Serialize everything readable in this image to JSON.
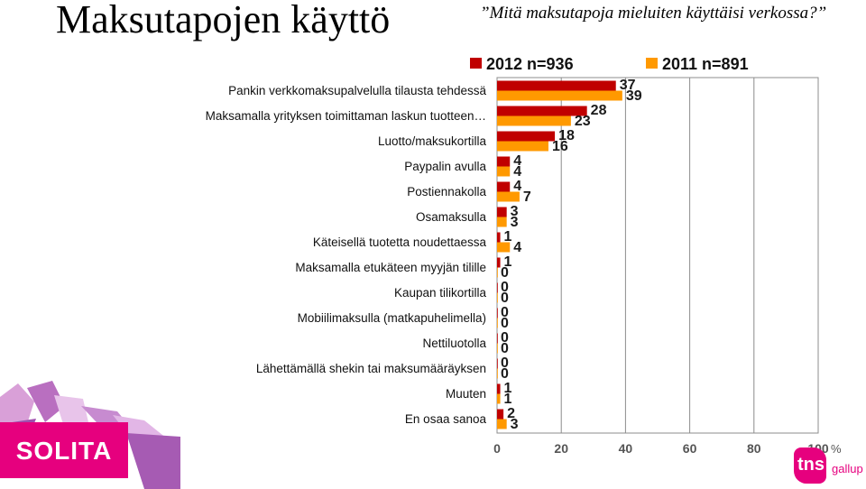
{
  "slide": {
    "title": "Maksutapojen käyttö",
    "subtitle": "”Mitä maksutapoja mieluiten käyttäisi verkossa?”"
  },
  "logos": {
    "solita": "SOLITA",
    "tns_mark": "tns",
    "tns_sub": "gallup"
  },
  "colors": {
    "series_2012": "#c00000",
    "series_2011": "#ff9900",
    "brand_pink": "#e6007e"
  },
  "chart_data": {
    "type": "bar",
    "orientation": "horizontal",
    "categories": [
      "Pankin verkkomaksupalvelulla tilausta tehdessä",
      "Maksamalla yrityksen toimittaman laskun tuotteen…",
      "Luotto/maksukortilla",
      "Paypalin avulla",
      "Postiennakolla",
      "Osamaksulla",
      "Käteisellä tuotetta noudettaessa",
      "Maksamalla etukäteen myyjän tilille",
      "Kaupan tilikortilla",
      "Mobiilimaksulla (matkapuhelimella)",
      "Nettiluotolla",
      "Lähettämällä shekin tai maksumääräyksen",
      "Muuten",
      "En osaa sanoa"
    ],
    "series": [
      {
        "name": "2012 n=936",
        "values": [
          37,
          28,
          18,
          4,
          4,
          3,
          1,
          1,
          0,
          0,
          0,
          0,
          1,
          2
        ]
      },
      {
        "name": "2011 n=891",
        "values": [
          39,
          23,
          16,
          4,
          7,
          3,
          4,
          0,
          0,
          0,
          0,
          0,
          1,
          3
        ]
      }
    ],
    "xlim": [
      0,
      100
    ],
    "xticks": [
      "0",
      "20",
      "40",
      "60",
      "80",
      "100"
    ],
    "x_unit": "%",
    "grid": true,
    "legend_position": "top"
  }
}
